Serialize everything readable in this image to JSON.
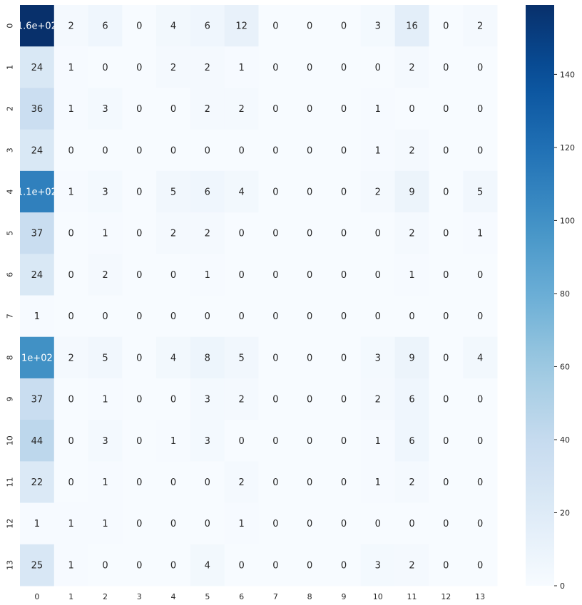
{
  "chart_data": {
    "type": "heatmap",
    "title": "",
    "xlabel": "",
    "ylabel": "",
    "x_categories": [
      "0",
      "1",
      "2",
      "3",
      "4",
      "5",
      "6",
      "7",
      "8",
      "9",
      "10",
      "11",
      "12",
      "13"
    ],
    "y_categories": [
      "0",
      "1",
      "2",
      "3",
      "4",
      "5",
      "6",
      "7",
      "8",
      "9",
      "10",
      "11",
      "12",
      "13"
    ],
    "values": [
      [
        160,
        2,
        6,
        0,
        4,
        6,
        12,
        0,
        0,
        0,
        3,
        16,
        0,
        2
      ],
      [
        24,
        1,
        0,
        0,
        2,
        2,
        1,
        0,
        0,
        0,
        0,
        2,
        0,
        0
      ],
      [
        36,
        1,
        3,
        0,
        0,
        2,
        2,
        0,
        0,
        0,
        1,
        0,
        0,
        0
      ],
      [
        24,
        0,
        0,
        0,
        0,
        0,
        0,
        0,
        0,
        0,
        1,
        2,
        0,
        0
      ],
      [
        110,
        1,
        3,
        0,
        5,
        6,
        4,
        0,
        0,
        0,
        2,
        9,
        0,
        5
      ],
      [
        37,
        0,
        1,
        0,
        2,
        2,
        0,
        0,
        0,
        0,
        0,
        2,
        0,
        1
      ],
      [
        24,
        0,
        2,
        0,
        0,
        1,
        0,
        0,
        0,
        0,
        0,
        1,
        0,
        0
      ],
      [
        1,
        0,
        0,
        0,
        0,
        0,
        0,
        0,
        0,
        0,
        0,
        0,
        0,
        0
      ],
      [
        100,
        2,
        5,
        0,
        4,
        8,
        5,
        0,
        0,
        0,
        3,
        9,
        0,
        4
      ],
      [
        37,
        0,
        1,
        0,
        0,
        3,
        2,
        0,
        0,
        0,
        2,
        6,
        0,
        0
      ],
      [
        44,
        0,
        3,
        0,
        1,
        3,
        0,
        0,
        0,
        0,
        1,
        6,
        0,
        0
      ],
      [
        22,
        0,
        1,
        0,
        0,
        0,
        2,
        0,
        0,
        0,
        1,
        2,
        0,
        0
      ],
      [
        1,
        1,
        1,
        0,
        0,
        0,
        1,
        0,
        0,
        0,
        0,
        0,
        0,
        0
      ],
      [
        25,
        1,
        0,
        0,
        0,
        4,
        0,
        0,
        0,
        0,
        3,
        2,
        0,
        0
      ]
    ],
    "annotations": [
      [
        "1.6e+02",
        "2",
        "6",
        "0",
        "4",
        "6",
        "12",
        "0",
        "0",
        "0",
        "3",
        "16",
        "0",
        "2"
      ],
      [
        "24",
        "1",
        "0",
        "0",
        "2",
        "2",
        "1",
        "0",
        "0",
        "0",
        "0",
        "2",
        "0",
        "0"
      ],
      [
        "36",
        "1",
        "3",
        "0",
        "0",
        "2",
        "2",
        "0",
        "0",
        "0",
        "1",
        "0",
        "0",
        "0"
      ],
      [
        "24",
        "0",
        "0",
        "0",
        "0",
        "0",
        "0",
        "0",
        "0",
        "0",
        "1",
        "2",
        "0",
        "0"
      ],
      [
        "1.1e+02",
        "1",
        "3",
        "0",
        "5",
        "6",
        "4",
        "0",
        "0",
        "0",
        "2",
        "9",
        "0",
        "5"
      ],
      [
        "37",
        "0",
        "1",
        "0",
        "2",
        "2",
        "0",
        "0",
        "0",
        "0",
        "0",
        "2",
        "0",
        "1"
      ],
      [
        "24",
        "0",
        "2",
        "0",
        "0",
        "1",
        "0",
        "0",
        "0",
        "0",
        "0",
        "1",
        "0",
        "0"
      ],
      [
        "1",
        "0",
        "0",
        "0",
        "0",
        "0",
        "0",
        "0",
        "0",
        "0",
        "0",
        "0",
        "0",
        "0"
      ],
      [
        "1e+02",
        "2",
        "5",
        "0",
        "4",
        "8",
        "5",
        "0",
        "0",
        "0",
        "3",
        "9",
        "0",
        "4"
      ],
      [
        "37",
        "0",
        "1",
        "0",
        "0",
        "3",
        "2",
        "0",
        "0",
        "0",
        "2",
        "6",
        "0",
        "0"
      ],
      [
        "44",
        "0",
        "3",
        "0",
        "1",
        "3",
        "0",
        "0",
        "0",
        "0",
        "1",
        "6",
        "0",
        "0"
      ],
      [
        "22",
        "0",
        "1",
        "0",
        "0",
        "0",
        "2",
        "0",
        "0",
        "0",
        "1",
        "2",
        "0",
        "0"
      ],
      [
        "1",
        "1",
        "1",
        "0",
        "0",
        "0",
        "1",
        "0",
        "0",
        "0",
        "0",
        "0",
        "0",
        "0"
      ],
      [
        "25",
        "1",
        "0",
        "0",
        "0",
        "4",
        "0",
        "0",
        "0",
        "0",
        "3",
        "2",
        "0",
        "0"
      ]
    ],
    "colormap": "Blues",
    "colorbar": {
      "vmin": 0,
      "vmax": 159,
      "ticks": [
        0,
        20,
        40,
        60,
        80,
        100,
        120,
        140
      ],
      "tick_labels": [
        "0",
        "20",
        "40",
        "60",
        "80",
        "100",
        "120",
        "140"
      ]
    },
    "grid": false,
    "colors": {
      "low": "#f7fbff",
      "high": "#08306b",
      "text_dark": "#262626",
      "text_light": "#ffffff"
    }
  }
}
